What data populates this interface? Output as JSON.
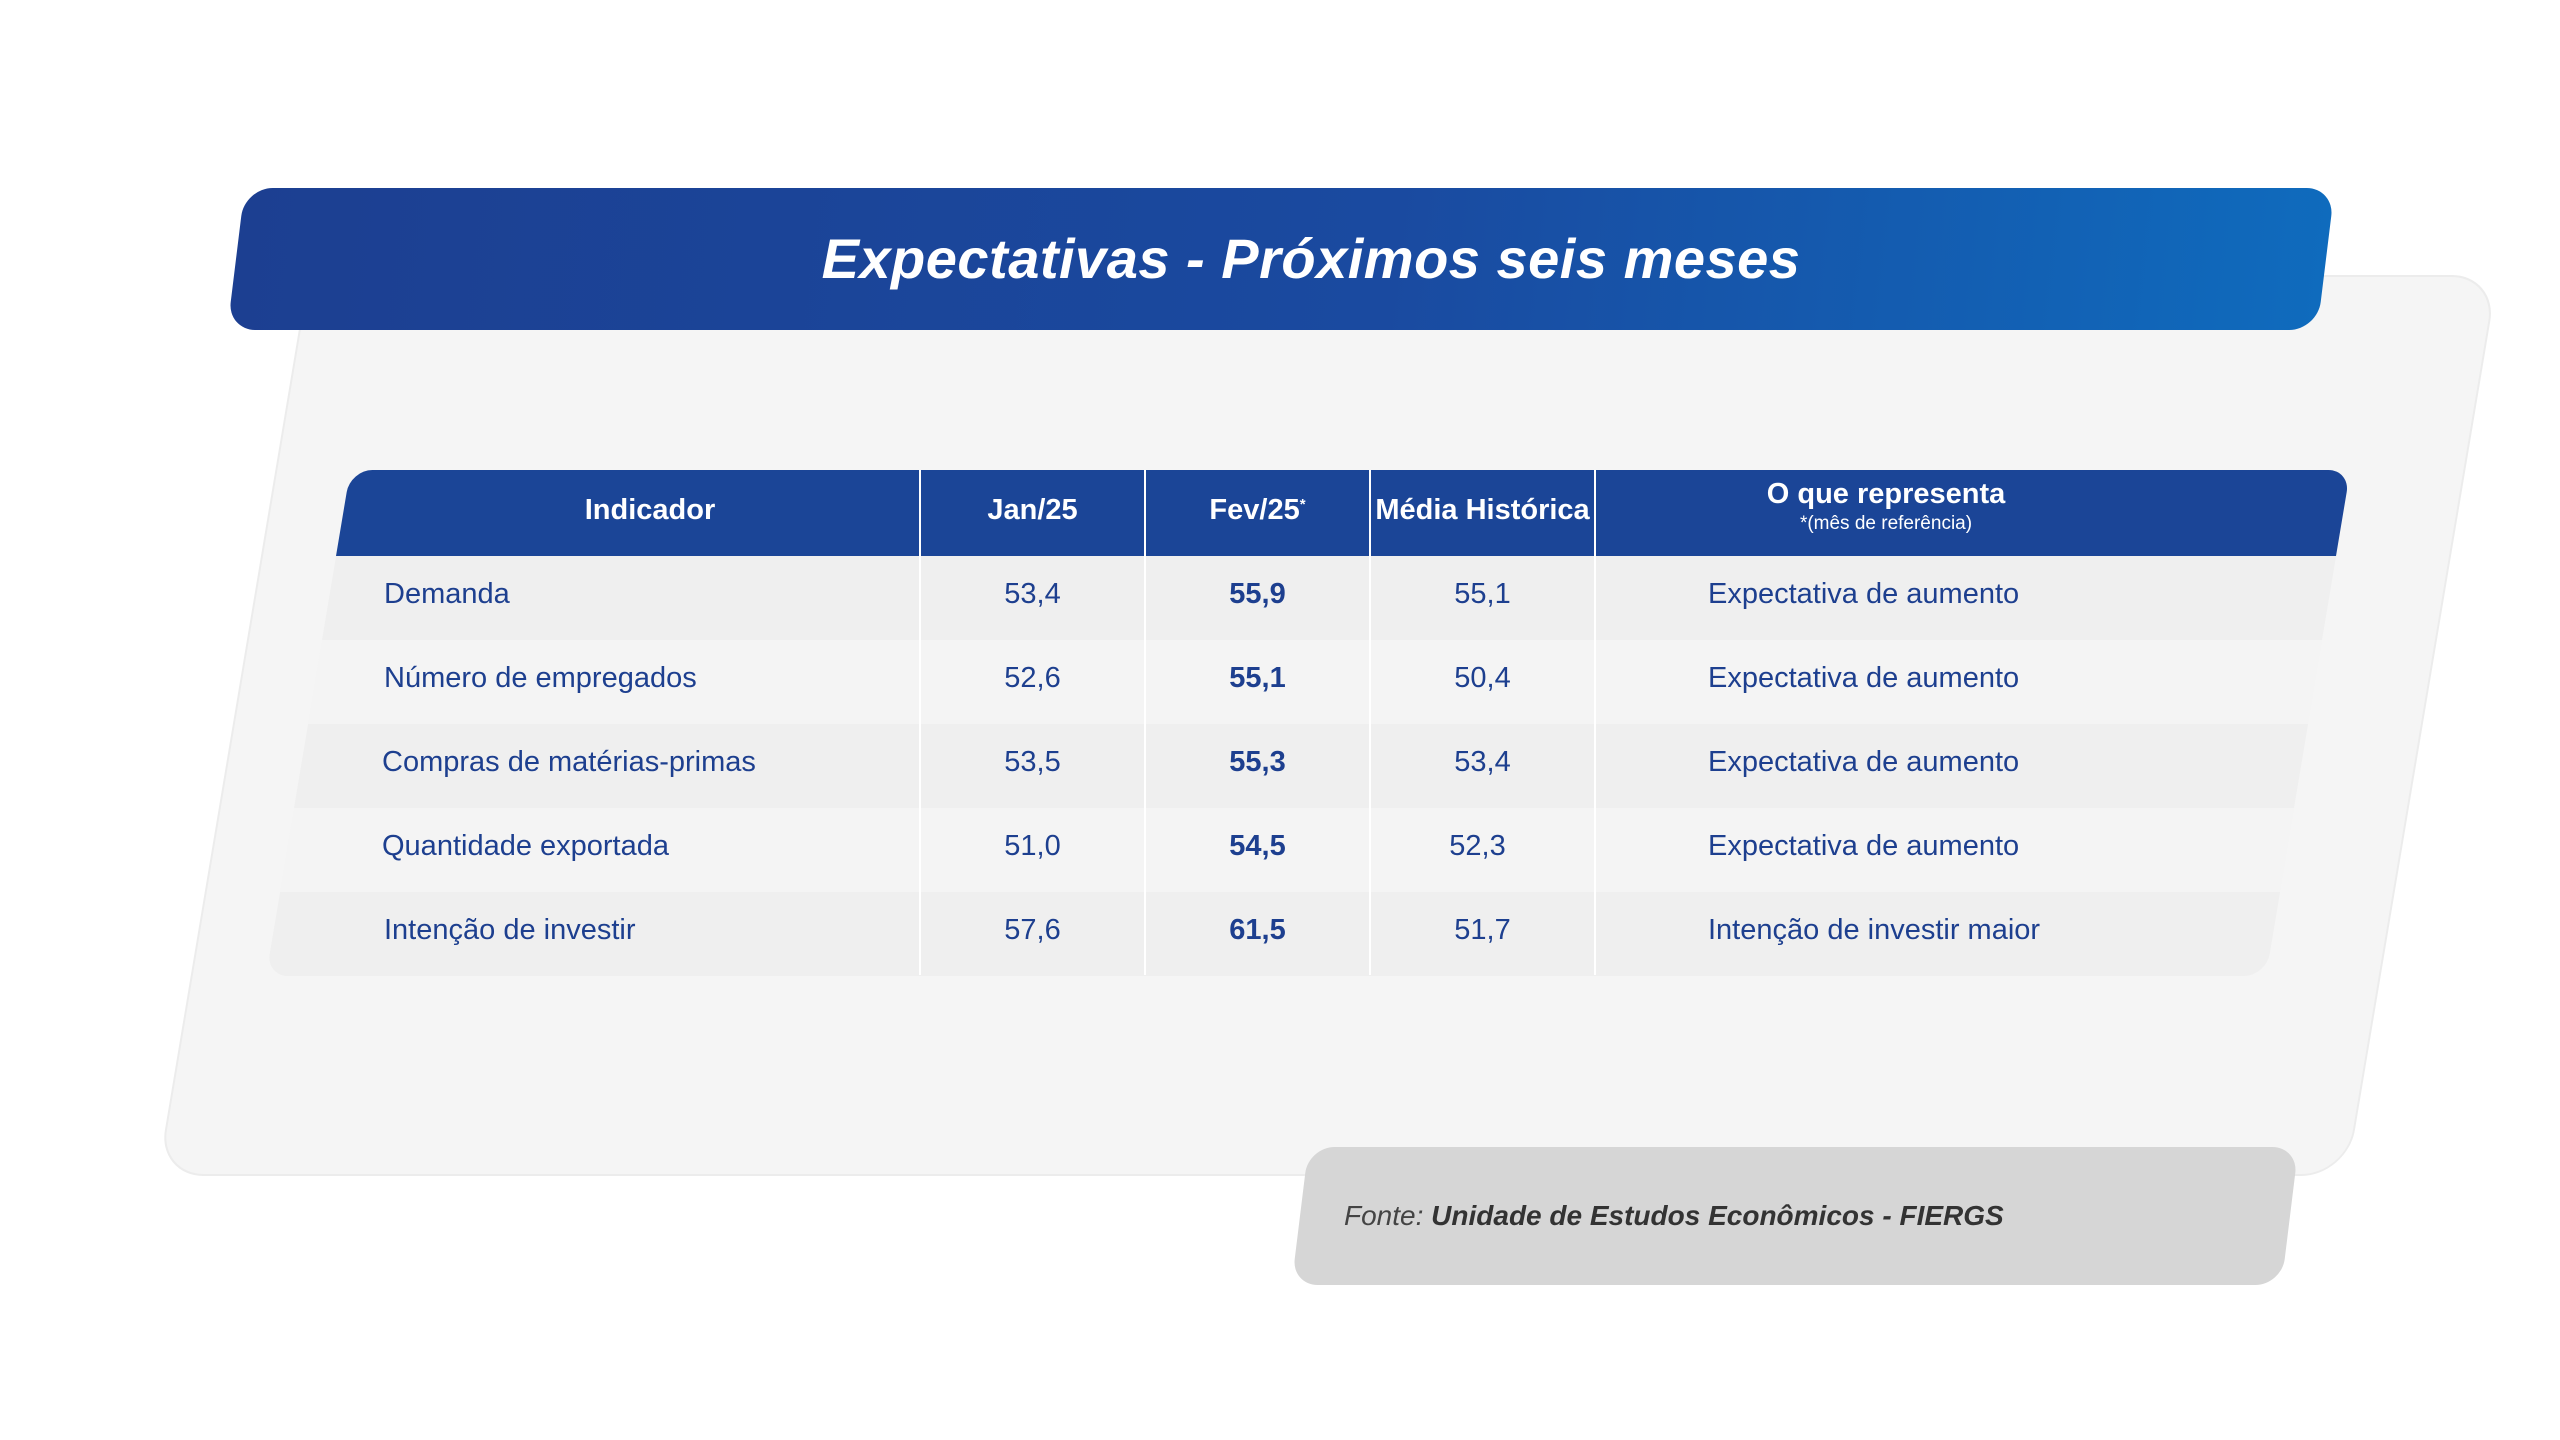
{
  "title": "Expectativas - Próximos seis meses",
  "table": {
    "headers": {
      "indicador": "Indicador",
      "jan": "Jan/25",
      "fev": "Fev/25",
      "fev_mark": "*",
      "media": "Média Histórica",
      "representa": "O que representa",
      "representa_note": "*(mês de referência)"
    },
    "rows": [
      {
        "indicador": "Demanda",
        "jan": "53,4",
        "fev": "55,9",
        "media": "55,1",
        "representa": "Expectativa de aumento"
      },
      {
        "indicador": "Número de empregados",
        "jan": "52,6",
        "fev": "55,1",
        "media": "50,4",
        "representa": "Expectativa de aumento"
      },
      {
        "indicador": "Compras de matérias-primas",
        "jan": "53,5",
        "fev": "55,3",
        "media": "53,4",
        "representa": "Expectativa de aumento"
      },
      {
        "indicador": "Quantidade exportada",
        "jan": "51,0",
        "fev": "54,5",
        "media": "52,3",
        "representa": "Expectativa de aumento"
      },
      {
        "indicador": "Intenção de investir",
        "jan": "57,6",
        "fev": "61,5",
        "media": "51,7",
        "representa": "Intenção de investir maior"
      }
    ]
  },
  "source": {
    "prefix": "Fonte:",
    "name": "Unidade de Estudos Econômicos - FIERGS"
  },
  "colors": {
    "primary_blue": "#1b4597",
    "text_blue": "#1d3f8f",
    "panel_gray": "#f5f5f5",
    "source_gray": "#d6d6d6"
  }
}
